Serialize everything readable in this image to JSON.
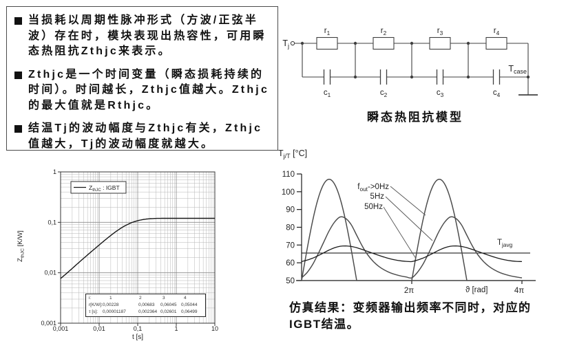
{
  "slide": {
    "bullets": [
      {
        "text": "当损耗以周期性脉冲形式（方波/正弦半波）存在时，模块表现出热容性，可用瞬态热阻抗Zthjc来表示。"
      },
      {
        "text": "Zthjc是一个时间变量（瞬态损耗持续的时间）。时间越长，Zthjc值越大。Zthjc的最大值就是Rthjc。"
      },
      {
        "text": "结温Tj的波动幅度与Zthjc有关，Zthjc值越大，Tj的波动幅度就越大。"
      }
    ],
    "circuit_caption": "瞬态热阻抗模型",
    "sim_caption": "仿真结果：变频器输出频率不同时，对应的IGBT结温。"
  },
  "circuit": {
    "node_left_parts": [
      {
        "t": "T"
      },
      {
        "t": "j",
        "sub": true
      }
    ],
    "node_right_parts": [
      {
        "t": "T"
      },
      {
        "t": "case",
        "sub": true
      }
    ],
    "resistors": [
      [
        {
          "t": "r"
        },
        {
          "t": "1",
          "sub": true
        }
      ],
      [
        {
          "t": "r"
        },
        {
          "t": "2",
          "sub": true
        }
      ],
      [
        {
          "t": "r"
        },
        {
          "t": "3",
          "sub": true
        }
      ],
      [
        {
          "t": "r"
        },
        {
          "t": "4",
          "sub": true
        }
      ]
    ],
    "capacitors": [
      [
        {
          "t": "c"
        },
        {
          "t": "1",
          "sub": true
        }
      ],
      [
        {
          "t": "c"
        },
        {
          "t": "2",
          "sub": true
        }
      ],
      [
        {
          "t": "c"
        },
        {
          "t": "3",
          "sub": true
        }
      ],
      [
        {
          "t": "c"
        },
        {
          "t": "4",
          "sub": true
        }
      ]
    ]
  },
  "chart_data": [
    {
      "id": "zth",
      "type": "line",
      "xlabel": "t [s]",
      "ylabel_parts": [
        {
          "t": "Z"
        },
        {
          "t": "thJC",
          "sub": true
        },
        {
          "t": " [K/W]"
        }
      ],
      "xscale": "log",
      "yscale": "log",
      "xlim": [
        0.001,
        10
      ],
      "ylim": [
        0.001,
        1
      ],
      "x_tick_labels": [
        "0,001",
        "0,01",
        "0,1",
        "1",
        "10"
      ],
      "y_tick_labels": [
        "1",
        "0,1",
        "0,01",
        "0,001"
      ],
      "grid": true,
      "legend_parts": [
        {
          "t": "Z"
        },
        {
          "t": "thJC",
          "sub": true
        },
        {
          "t": " : IGBT"
        }
      ],
      "series": [
        {
          "name": "ZthJC : IGBT",
          "model": "foster-sum",
          "r_KW": [
            0.00228,
            0.00683,
            0.06045,
            0.05044
          ],
          "tau_s": [
            1.187e-05,
            0.002364,
            0.02601,
            0.06499
          ],
          "plateau_KW": 0.12
        }
      ],
      "foster_table": {
        "rows": [
          {
            "label": "i:",
            "values": [
              "1",
              "2",
              "3",
              "4"
            ]
          },
          {
            "label": "r[K/W]:",
            "values": [
              "0,00228",
              "0,00683",
              "0,06045",
              "0,05044"
            ]
          },
          {
            "label": "τ [s]:",
            "values": [
              "0,00001187",
              "0,002364",
              "0,02601",
              "0,06499"
            ]
          }
        ]
      }
    },
    {
      "id": "tj",
      "type": "line",
      "ylabel_parts": [
        {
          "t": "T"
        },
        {
          "t": "j/T",
          "sub": true
        },
        {
          "t": " [°C]"
        }
      ],
      "xlabel_parts": [
        {
          "t": "ϑ [rad]"
        }
      ],
      "ylim": [
        50,
        110
      ],
      "y_ticks": [
        50,
        60,
        70,
        80,
        90,
        100,
        110
      ],
      "x_tick_labels": [
        "2π",
        "4π"
      ],
      "t_avg_C": 65.5,
      "annotations": [
        {
          "parts": [
            {
              "t": "f"
            },
            {
              "t": "out",
              "sub": true
            },
            {
              "t": "->0Hz"
            }
          ]
        },
        {
          "parts": [
            {
              "t": "5Hz"
            }
          ]
        },
        {
          "parts": [
            {
              "t": "50Hz"
            }
          ]
        },
        {
          "parts": [
            {
              "t": "T"
            },
            {
              "t": "javg",
              "sub": true
            }
          ]
        }
      ],
      "series": [
        {
          "name": "fout->0Hz",
          "model": "half-sine",
          "base_C": 50,
          "peak_C": 107,
          "periods": 2
        },
        {
          "name": "5Hz",
          "theta_over_pi_step": 0.1,
          "periods": 2,
          "period_values_C": [
            51.5,
            54.5,
            59,
            65,
            71.5,
            78,
            83,
            85.8,
            85,
            81.5,
            75.5,
            69.5,
            64.5,
            60.8,
            58,
            56,
            54.5,
            53.4,
            52.6,
            52,
            51.5
          ]
        },
        {
          "name": "50Hz",
          "theta_over_pi_step": 0.1,
          "periods": 2,
          "period_values_C": [
            60.7,
            61.5,
            62.6,
            64,
            65.6,
            67.2,
            68.5,
            69.3,
            69.5,
            69.2,
            68.5,
            67.5,
            66.4,
            65.3,
            64.2,
            63.2,
            62.3,
            61.6,
            61.1,
            60.8,
            60.7
          ]
        }
      ]
    }
  ]
}
